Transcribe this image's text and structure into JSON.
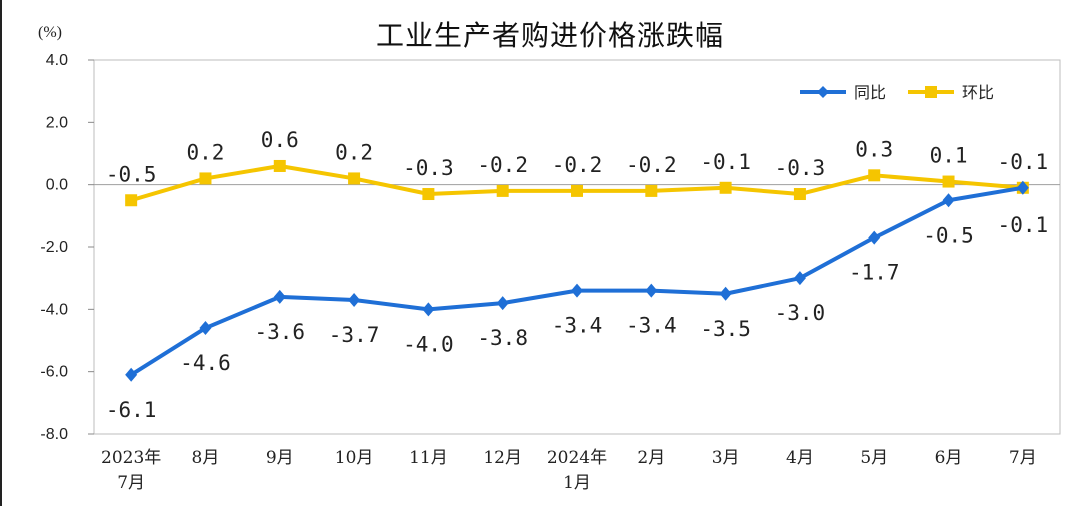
{
  "title": "工业生产者购进价格涨跌幅",
  "unit_label": "(%)",
  "chart_data": {
    "type": "line",
    "title": "工业生产者购进价格涨跌幅",
    "ylabel": "(%)",
    "ylim": [
      -8.0,
      4.0
    ],
    "yticks": [
      "4.0",
      "2.0",
      "0.0",
      "-2.0",
      "-4.0",
      "-6.0",
      "-8.0"
    ],
    "grid": false,
    "legend_position": "top-right",
    "categories": [
      [
        "2023年",
        "7月"
      ],
      [
        "8月"
      ],
      [
        "9月"
      ],
      [
        "10月"
      ],
      [
        "11月"
      ],
      [
        "12月"
      ],
      [
        "2024年",
        "1月"
      ],
      [
        "2月"
      ],
      [
        "3月"
      ],
      [
        "4月"
      ],
      [
        "5月"
      ],
      [
        "6月"
      ],
      [
        "7月"
      ]
    ],
    "series": [
      {
        "name": "同比",
        "color": "#1F6FD6",
        "marker": "diamond",
        "values": [
          -6.1,
          -4.6,
          -3.6,
          -3.7,
          -4.0,
          -3.8,
          -3.4,
          -3.4,
          -3.5,
          -3.0,
          -1.7,
          -0.5,
          -0.1
        ],
        "labels": [
          "-6.1",
          "-4.6",
          "-3.6",
          "-3.7",
          "-4.0",
          "-3.8",
          "-3.4",
          "-3.4",
          "-3.5",
          "-3.0",
          "-1.7",
          "-0.5",
          "-0.1"
        ]
      },
      {
        "name": "环比",
        "color": "#F5C500",
        "marker": "square",
        "values": [
          -0.5,
          0.2,
          0.6,
          0.2,
          -0.3,
          -0.2,
          -0.2,
          -0.2,
          -0.1,
          -0.3,
          0.3,
          0.1,
          -0.1
        ],
        "labels": [
          "-0.5",
          "0.2",
          "0.6",
          "0.2",
          "-0.3",
          "-0.2",
          "-0.2",
          "-0.2",
          "-0.1",
          "-0.3",
          "0.3",
          "0.1",
          "-0.1"
        ]
      }
    ]
  }
}
